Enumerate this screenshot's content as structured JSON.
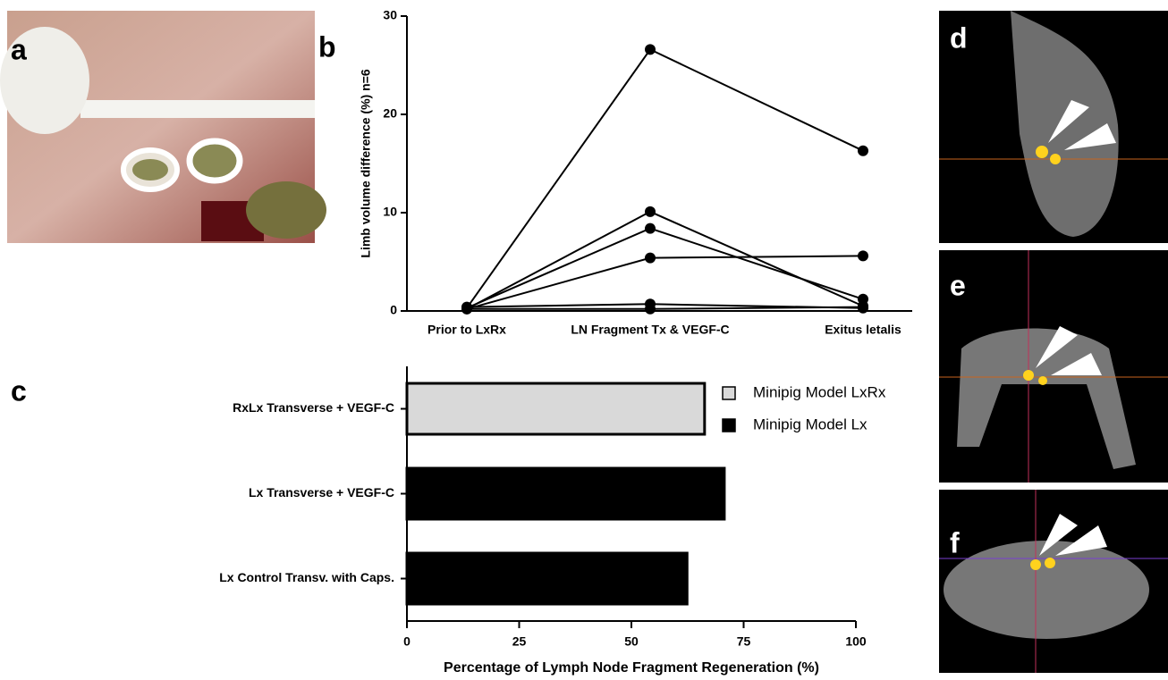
{
  "panel_labels": [
    "a",
    "b",
    "c",
    "d",
    "e",
    "f"
  ],
  "chart_data": [
    {
      "type": "line",
      "ylabel": "Limb volume difference (%) n=6",
      "categories": [
        "Prior to LxRx",
        "LN Fragment Tx & VEGF-C",
        "Exitus letalis"
      ],
      "ylim": [
        0,
        30
      ],
      "yticks": [
        0,
        10,
        20,
        30
      ],
      "series": [
        {
          "color": "#000000",
          "values": [
            0.3,
            26.6,
            16.3
          ]
        },
        {
          "color": "#000000",
          "values": [
            0.2,
            10.1,
            0.5
          ]
        },
        {
          "color": "#000000",
          "values": [
            0.3,
            8.4,
            1.2
          ]
        },
        {
          "color": "#000000",
          "values": [
            0.2,
            5.4,
            5.6
          ]
        },
        {
          "color": "#000000",
          "values": [
            0.4,
            0.7,
            0.3
          ]
        },
        {
          "color": "#000000",
          "values": [
            0.2,
            0.2,
            0.4
          ]
        }
      ]
    },
    {
      "type": "bar",
      "orientation": "horizontal",
      "legend": "upper right",
      "xlabel": "Percentage of Lymph Node Fragment Regeneration (%)",
      "categories": [
        "RxLx Transverse + VEGF-C",
        "Lx Transverse + VEGF-C",
        "Lx Control Transv. with Caps."
      ],
      "xlim": [
        0,
        100
      ],
      "xticks": [
        0,
        25,
        50,
        75,
        100
      ],
      "series": [
        {
          "name": "Minipig Model LxRx",
          "color": "#d9d9d9",
          "values": [
            66.3,
            null,
            null
          ]
        },
        {
          "name": "Minipig Model Lx",
          "color": "#000000",
          "values": [
            null,
            70.7,
            62.4
          ]
        }
      ]
    }
  ]
}
